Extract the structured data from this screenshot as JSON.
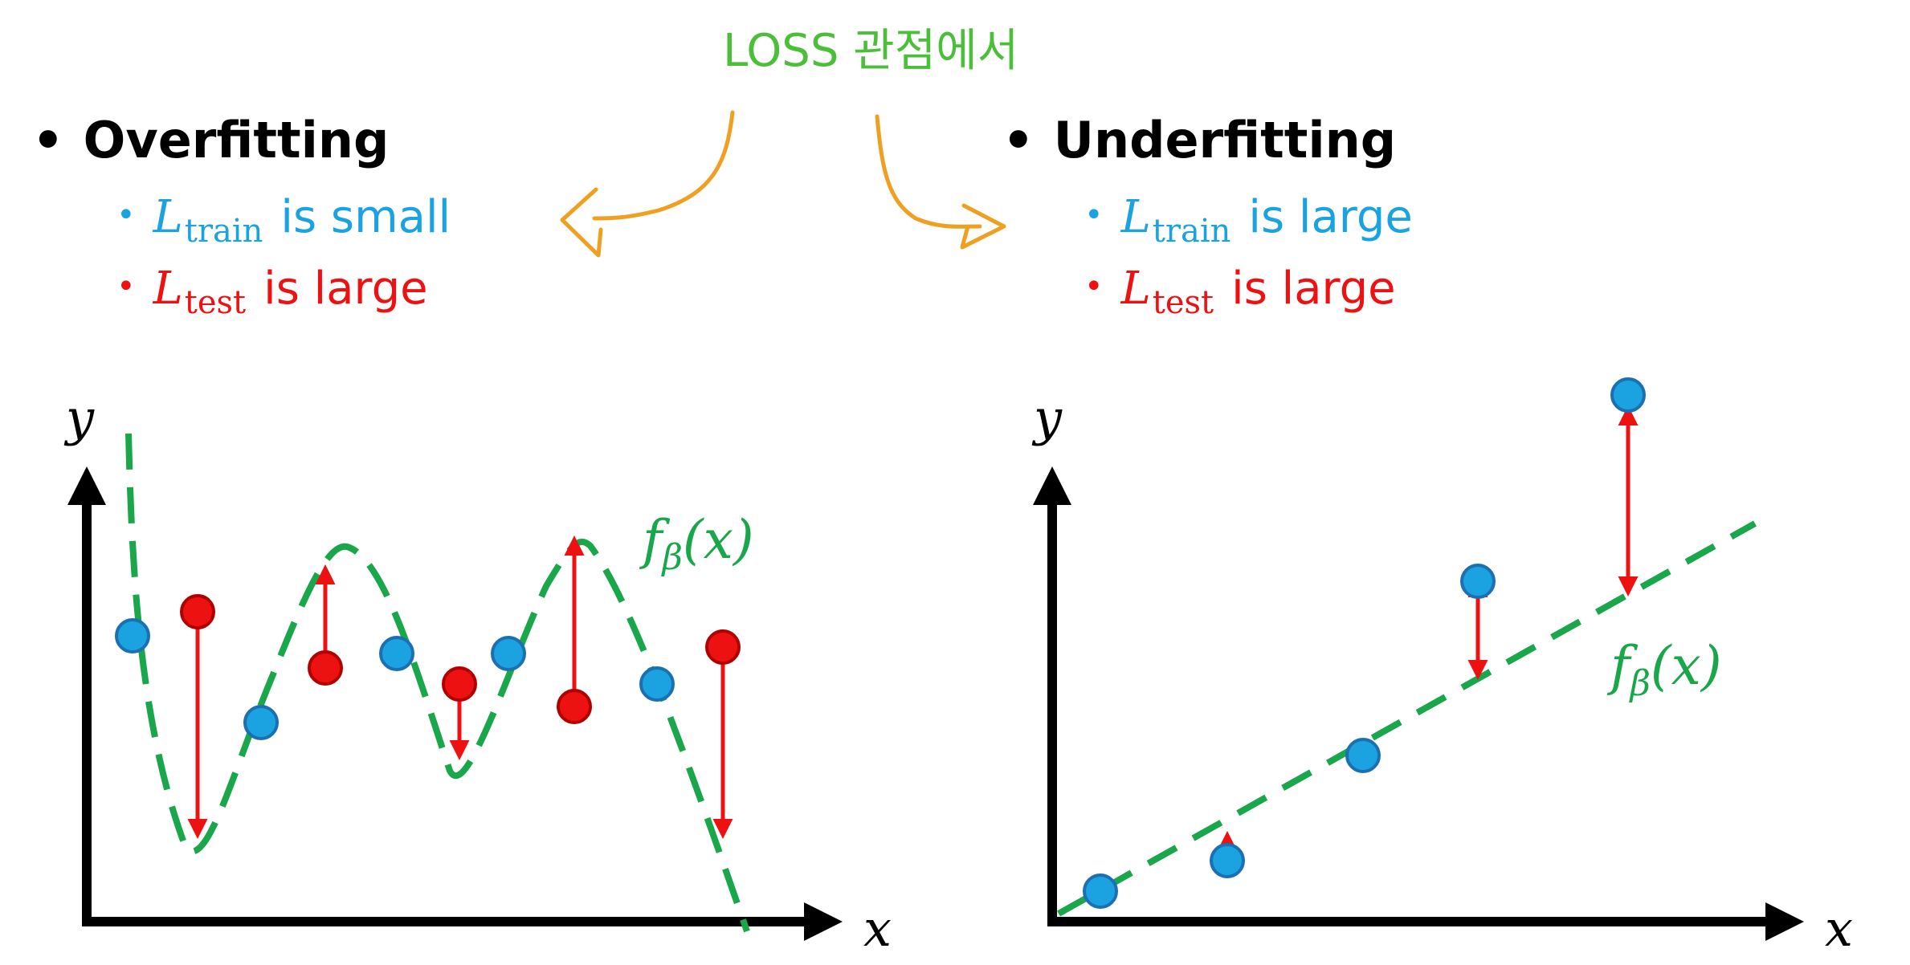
{
  "note": "LOSS 관점에서",
  "left": {
    "heading": "Overfitting",
    "train": {
      "symbol": "L",
      "sub": "train",
      "text": "is small"
    },
    "test": {
      "symbol": "L",
      "sub": "test",
      "text": "is large"
    },
    "axis_x": "x",
    "axis_y": "y",
    "curve_label": "f",
    "curve_label_sub": "β",
    "curve_label_arg": "(x)"
  },
  "right": {
    "heading": "Underfitting",
    "train": {
      "symbol": "L",
      "sub": "train",
      "text": "is large"
    },
    "test": {
      "symbol": "L",
      "sub": "test",
      "text": "is large"
    },
    "axis_x": "x",
    "axis_y": "y",
    "curve_label": "f",
    "curve_label_sub": "β",
    "curve_label_arg": "(x)"
  },
  "colors": {
    "train": "#1aa3e0",
    "test": "#ee1111",
    "curve": "#1aa64a",
    "hand_arrow": "#f0a020",
    "hand_note": "#4cbf3a"
  }
}
